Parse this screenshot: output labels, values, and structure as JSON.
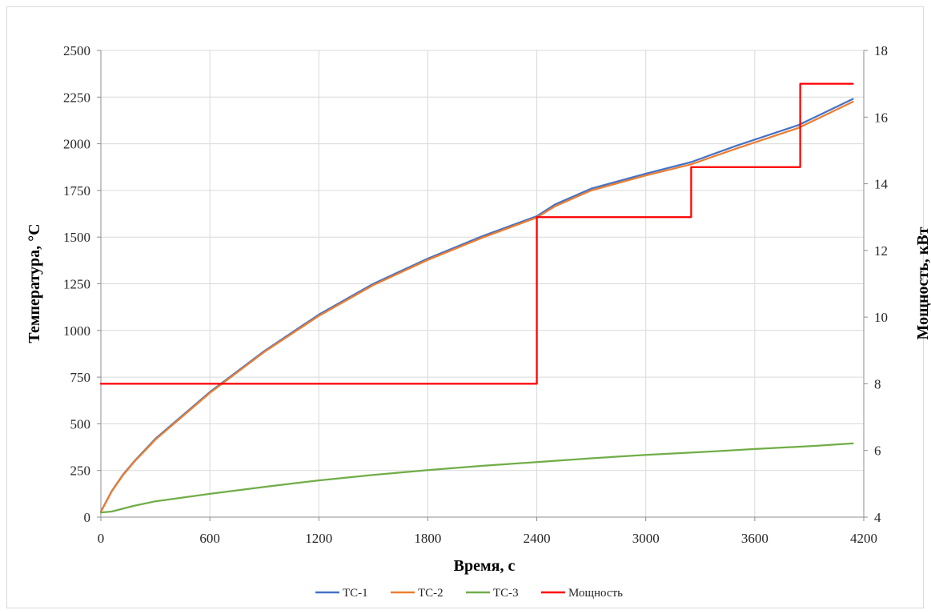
{
  "chart_data": {
    "type": "line",
    "title": "",
    "xlabel": "Время, с",
    "ylabel": "Температура, °С",
    "y2label": "Мощность, кВт",
    "xlim": [
      0,
      4200
    ],
    "ylim": [
      0,
      2500
    ],
    "y2lim": [
      4,
      18
    ],
    "x_ticks": [
      0,
      600,
      1200,
      1800,
      2400,
      3000,
      3600,
      4200
    ],
    "y_ticks": [
      0,
      250,
      500,
      750,
      1000,
      1250,
      1500,
      1750,
      2000,
      2250,
      2500
    ],
    "y2_ticks": [
      4,
      6,
      8,
      10,
      12,
      14,
      16,
      18
    ],
    "grid": true,
    "legend_position": "bottom",
    "series": [
      {
        "name": "ТС-1",
        "axis": "left",
        "color": "#4472c4",
        "x": [
          0,
          60,
          120,
          180,
          300,
          600,
          900,
          1200,
          1500,
          1800,
          2100,
          2400,
          2500,
          2700,
          3000,
          3250,
          3500,
          3840,
          4140
        ],
        "y": [
          30,
          140,
          225,
          295,
          420,
          670,
          890,
          1085,
          1250,
          1385,
          1505,
          1612,
          1675,
          1760,
          1840,
          1902,
          1990,
          2100,
          2240
        ]
      },
      {
        "name": "ТС-2",
        "axis": "left",
        "color": "#ed7d31",
        "x": [
          0,
          60,
          120,
          180,
          300,
          600,
          900,
          1200,
          1500,
          1800,
          2100,
          2400,
          2500,
          2700,
          3000,
          3250,
          3500,
          3840,
          4140
        ],
        "y": [
          28,
          138,
          222,
          292,
          415,
          665,
          885,
          1078,
          1243,
          1378,
          1497,
          1605,
          1665,
          1750,
          1830,
          1890,
          1975,
          2085,
          2225
        ]
      },
      {
        "name": "ТС-3",
        "axis": "left",
        "color": "#70ad47",
        "x": [
          0,
          60,
          120,
          180,
          300,
          600,
          900,
          1200,
          1500,
          1800,
          2100,
          2400,
          2700,
          3000,
          3300,
          3600,
          3900,
          4140
        ],
        "y": [
          25,
          30,
          45,
          60,
          85,
          125,
          162,
          197,
          226,
          252,
          275,
          295,
          315,
          333,
          348,
          365,
          380,
          395
        ]
      },
      {
        "name": "Мощность",
        "axis": "right",
        "color": "#ff0000",
        "step": true,
        "x": [
          0,
          2400,
          2400,
          3250,
          3250,
          3850,
          3850,
          4140
        ],
        "y": [
          8,
          8,
          13,
          13,
          14.5,
          14.5,
          17,
          17
        ]
      }
    ]
  }
}
